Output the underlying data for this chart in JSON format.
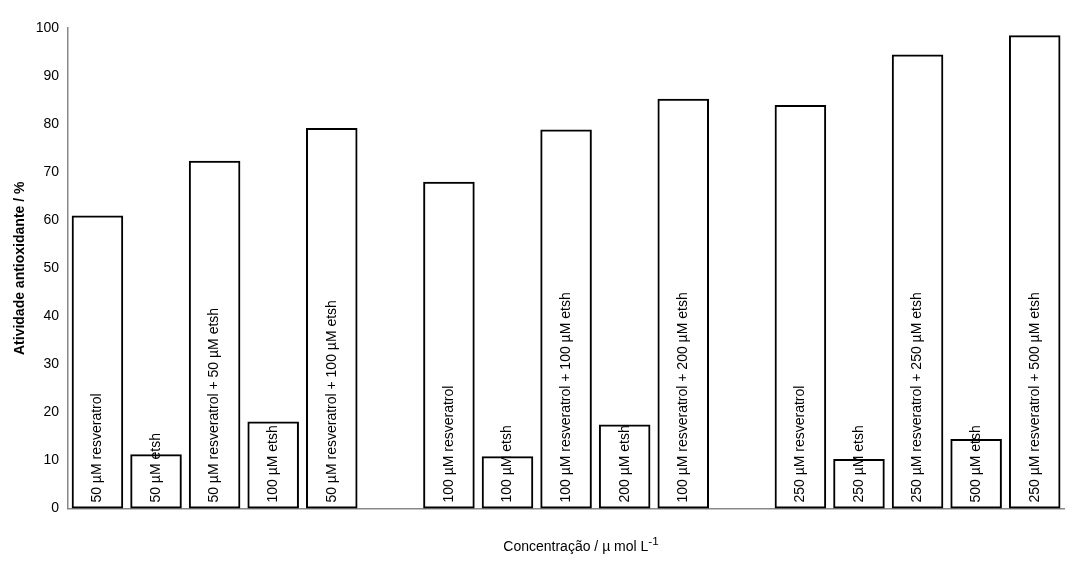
{
  "chart_data": {
    "type": "bar",
    "xlabel": "Concentração / µ mol L$^{-1}$",
    "ylabel": "Atividade antioxidante / %",
    "categories": [
      "50 µM resveratrol",
      "50 µM etsh",
      "50 µM resveratrol + 50 µM etsh",
      "100 µM etsh",
      "50 µM resveratrol + 100 µM etsh",
      null,
      "100 µM resveratrol",
      "100 µM etsh",
      "100 µM resveratrol + 100 µM etsh",
      "200 µM etsh",
      "100 µM resveratrol + 200 µM etsh",
      null,
      "250 µM resveratrol",
      "250 µM etsh",
      "250 µM resveratrol + 250 µM etsh",
      "500 µM etsh",
      "250 µM resveratrol + 500 µM etsh"
    ],
    "values": [
      61,
      11.3,
      72.4,
      18.1,
      79.2,
      null,
      68,
      10.9,
      78.9,
      17.5,
      85.3,
      null,
      84,
      10.3,
      94.5,
      14.5,
      98.5
    ],
    "color": "#000000",
    "ylim": [
      0,
      100
    ],
    "yticks": [
      0,
      10,
      20,
      30,
      40,
      50,
      60,
      70,
      80,
      90,
      100
    ],
    "grid": false,
    "legend": false
  }
}
